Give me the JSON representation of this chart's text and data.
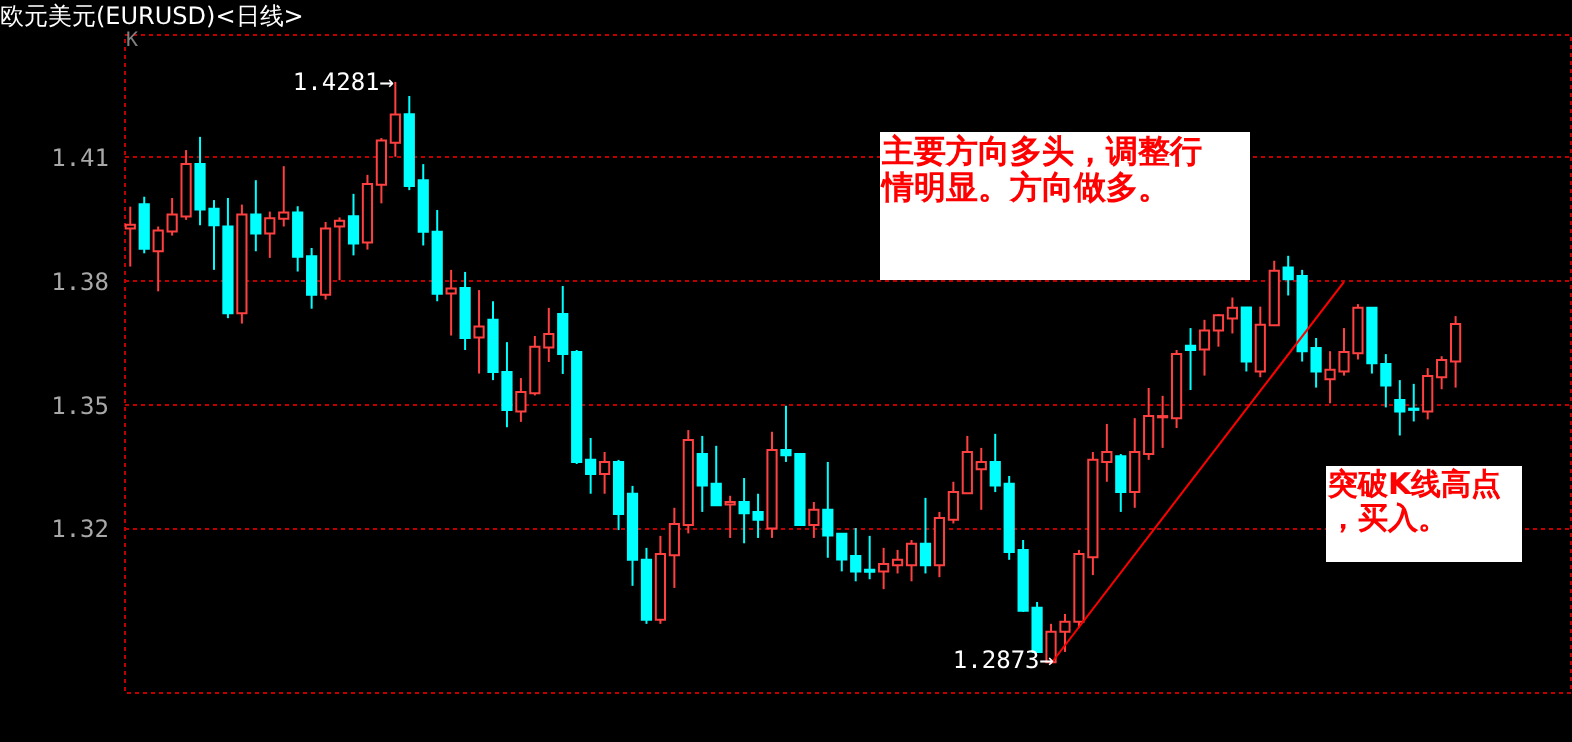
{
  "chart_data": {
    "type": "candlestick",
    "title": "欧元美元(EURUSD)<日线>",
    "categories": [
      null,
      null,
      null,
      null,
      null,
      null,
      null,
      null,
      null,
      null,
      null,
      null,
      null,
      null,
      null,
      null,
      null,
      null,
      null,
      null,
      null,
      null,
      null,
      null,
      null,
      null,
      null,
      null,
      null,
      null,
      null,
      null,
      null,
      null,
      null,
      null,
      null,
      null,
      null,
      null,
      null,
      null,
      null,
      null,
      null,
      null,
      null,
      null,
      null,
      null,
      null,
      null,
      null,
      null,
      null,
      null,
      null,
      null,
      null,
      null,
      null,
      null,
      null,
      null,
      null,
      null,
      null,
      null,
      null,
      null,
      null,
      null,
      null,
      null,
      null,
      null,
      null,
      null,
      null,
      null,
      null,
      null,
      null,
      null,
      null,
      null,
      null,
      null,
      null,
      null,
      null,
      null,
      null,
      null,
      null,
      null
    ],
    "ohlc": [
      [
        1.3926,
        1.3979,
        1.3834,
        1.3935
      ],
      [
        1.3985,
        1.4003,
        1.3866,
        1.3877
      ],
      [
        1.3871,
        1.3931,
        1.3774,
        1.3921
      ],
      [
        1.3919,
        1.4,
        1.3909,
        1.396
      ],
      [
        1.3955,
        1.4116,
        1.3947,
        1.4082
      ],
      [
        1.4082,
        1.4148,
        1.3934,
        1.3972
      ],
      [
        1.3974,
        1.3995,
        1.3826,
        1.3934
      ],
      [
        1.3931,
        1.4,
        1.3709,
        1.3721
      ],
      [
        1.3721,
        1.3984,
        1.3696,
        1.396
      ],
      [
        1.396,
        1.4043,
        1.3871,
        1.3914
      ],
      [
        1.3914,
        1.3967,
        1.3855,
        1.3951
      ],
      [
        1.395,
        1.4077,
        1.3931,
        1.3965
      ],
      [
        1.3965,
        1.398,
        1.3822,
        1.3858
      ],
      [
        1.3859,
        1.3879,
        1.3732,
        1.3766
      ],
      [
        1.3766,
        1.3942,
        1.3754,
        1.3926
      ],
      [
        1.3931,
        1.3953,
        1.3801,
        1.3945
      ],
      [
        1.3956,
        1.401,
        1.3861,
        1.389
      ],
      [
        1.3892,
        1.4056,
        1.3875,
        1.4034
      ],
      [
        1.4032,
        1.4145,
        1.3987,
        1.4139
      ],
      [
        1.4134,
        1.4281,
        1.41,
        1.4202
      ],
      [
        1.4203,
        1.4247,
        1.4019,
        1.4029
      ],
      [
        1.4043,
        1.4082,
        1.3885,
        1.3918
      ],
      [
        1.3918,
        1.3971,
        1.375,
        1.3768
      ],
      [
        1.3769,
        1.3826,
        1.3667,
        1.3781
      ],
      [
        1.3782,
        1.3821,
        1.3632,
        1.3661
      ],
      [
        1.3662,
        1.3777,
        1.3575,
        1.3689
      ],
      [
        1.3705,
        1.375,
        1.3559,
        1.3579
      ],
      [
        1.3579,
        1.3651,
        1.3445,
        1.3487
      ],
      [
        1.3483,
        1.3564,
        1.3458,
        1.353
      ],
      [
        1.3527,
        1.3666,
        1.3522,
        1.364
      ],
      [
        1.3638,
        1.3734,
        1.3603,
        1.3671
      ],
      [
        1.3719,
        1.3787,
        1.3574,
        1.3622
      ],
      [
        1.3627,
        1.3632,
        1.3356,
        1.3361
      ],
      [
        1.3366,
        1.3419,
        1.3284,
        1.3332
      ],
      [
        1.3332,
        1.3385,
        1.3284,
        1.3361
      ],
      [
        1.3361,
        1.3366,
        1.3196,
        1.3235
      ],
      [
        1.3284,
        1.3303,
        1.3061,
        1.3124
      ],
      [
        1.3124,
        1.3153,
        1.2969,
        1.2979
      ],
      [
        1.2979,
        1.3182,
        1.2969,
        1.3138
      ],
      [
        1.3135,
        1.325,
        1.3056,
        1.3211
      ],
      [
        1.3208,
        1.3438,
        1.3188,
        1.3414
      ],
      [
        1.338,
        1.3424,
        1.324,
        1.3304
      ],
      [
        1.3308,
        1.34,
        1.3256,
        1.3256
      ],
      [
        1.3258,
        1.3279,
        1.3177,
        1.3264
      ],
      [
        1.3264,
        1.3322,
        1.3164,
        1.3237
      ],
      [
        1.324,
        1.3284,
        1.3177,
        1.3221
      ],
      [
        1.32,
        1.3434,
        1.3177,
        1.339
      ],
      [
        1.339,
        1.3497,
        1.3361,
        1.3377
      ],
      [
        1.338,
        1.338,
        1.3208,
        1.3208
      ],
      [
        1.3208,
        1.3264,
        1.3177,
        1.3245
      ],
      [
        1.3245,
        1.3361,
        1.3129,
        1.3183
      ],
      [
        1.3187,
        1.3187,
        1.3096,
        1.3125
      ],
      [
        1.3133,
        1.3201,
        1.3072,
        1.3096
      ],
      [
        1.31,
        1.3182,
        1.3077,
        1.3095
      ],
      [
        1.3096,
        1.3153,
        1.3053,
        1.3114
      ],
      [
        1.3111,
        1.3148,
        1.3091,
        1.3124
      ],
      [
        1.3111,
        1.3172,
        1.3072,
        1.3163
      ],
      [
        1.3163,
        1.3274,
        1.3091,
        1.3111
      ],
      [
        1.3111,
        1.324,
        1.3082,
        1.3225
      ],
      [
        1.3221,
        1.3313,
        1.3212,
        1.3288
      ],
      [
        1.3285,
        1.3424,
        1.3285,
        1.3385
      ],
      [
        1.3343,
        1.3395,
        1.3245,
        1.3361
      ],
      [
        1.3361,
        1.3429,
        1.3288,
        1.3304
      ],
      [
        1.3308,
        1.3327,
        1.3124,
        1.3143
      ],
      [
        1.3148,
        1.3172,
        1.2998,
        1.3001
      ],
      [
        1.3008,
        1.3022,
        1.2901,
        1.2901
      ],
      [
        1.2876,
        1.2969,
        1.2873,
        1.295
      ],
      [
        1.295,
        1.2993,
        1.2901,
        1.2974
      ],
      [
        1.2974,
        1.3148,
        1.2959,
        1.3138
      ],
      [
        1.313,
        1.3385,
        1.3087,
        1.3366
      ],
      [
        1.3361,
        1.3453,
        1.3313,
        1.3385
      ],
      [
        1.3375,
        1.338,
        1.324,
        1.3288
      ],
      [
        1.3288,
        1.3467,
        1.325,
        1.3385
      ],
      [
        1.338,
        1.354,
        1.3366,
        1.3472
      ],
      [
        1.3469,
        1.3521,
        1.3395,
        1.3472
      ],
      [
        1.3467,
        1.3632,
        1.3443,
        1.3622
      ],
      [
        1.3642,
        1.3685,
        1.3535,
        1.3632
      ],
      [
        1.3633,
        1.3705,
        1.357,
        1.3679
      ],
      [
        1.3679,
        1.3719,
        1.364,
        1.3716
      ],
      [
        1.3708,
        1.3759,
        1.3672,
        1.3734
      ],
      [
        1.3735,
        1.3735,
        1.358,
        1.3604
      ],
      [
        1.358,
        1.3737,
        1.3566,
        1.3693
      ],
      [
        1.3692,
        1.3848,
        1.3692,
        1.3824
      ],
      [
        1.3832,
        1.386,
        1.3764,
        1.3803
      ],
      [
        1.3811,
        1.3826,
        1.3604,
        1.3629
      ],
      [
        1.3637,
        1.3661,
        1.3541,
        1.358
      ],
      [
        1.3561,
        1.3629,
        1.3503,
        1.3584
      ],
      [
        1.358,
        1.3685,
        1.357,
        1.3627
      ],
      [
        1.3624,
        1.3743,
        1.3609,
        1.3734
      ],
      [
        1.3734,
        1.3734,
        1.3575,
        1.36
      ],
      [
        1.3598,
        1.3622,
        1.3493,
        1.3546
      ],
      [
        1.3511,
        1.3559,
        1.3425,
        1.3483
      ],
      [
        1.349,
        1.355,
        1.3459,
        1.3487
      ],
      [
        1.3483,
        1.3588,
        1.3464,
        1.3569
      ],
      [
        1.3566,
        1.3617,
        1.3537,
        1.3608
      ],
      [
        1.3604,
        1.3714,
        1.3541,
        1.3695
      ]
    ],
    "colors": [
      "#ff4040",
      "#00ffff",
      "#ff4040",
      "#ff4040",
      "#ff4040",
      "#00ffff",
      "#00ffff",
      "#00ffff",
      "#ff4040",
      "#00ffff",
      "#ff4040",
      "#ff4040",
      "#00ffff",
      "#00ffff",
      "#ff4040",
      "#ff4040",
      "#00ffff",
      "#ff4040",
      "#ff4040",
      "#ff4040",
      "#00ffff",
      "#00ffff",
      "#00ffff",
      "#ff4040",
      "#00ffff",
      "#ff4040",
      "#00ffff",
      "#00ffff",
      "#ff4040",
      "#ff4040",
      "#ff4040",
      "#00ffff",
      "#00ffff",
      "#00ffff",
      "#ff4040",
      "#00ffff",
      "#00ffff",
      "#00ffff",
      "#ff4040",
      "#ff4040",
      "#ff4040",
      "#00ffff",
      "#00ffff",
      "#ff4040",
      "#00ffff",
      "#00ffff",
      "#ff4040",
      "#00ffff",
      "#00ffff",
      "#ff4040",
      "#00ffff",
      "#00ffff",
      "#00ffff",
      "#00ffff",
      "#ff4040",
      "#ff4040",
      "#ff4040",
      "#00ffff",
      "#ff4040",
      "#ff4040",
      "#ff4040",
      "#ff4040",
      "#00ffff",
      "#00ffff",
      "#00ffff",
      "#00ffff",
      "#ff4040",
      "#ff4040",
      "#ff4040",
      "#ff4040",
      "#ff4040",
      "#00ffff",
      "#ff4040",
      "#ff4040",
      "#ff4040",
      "#ff4040",
      "#00ffff",
      "#ff4040",
      "#ff4040",
      "#ff4040",
      "#00ffff",
      "#ff4040",
      "#ff4040",
      "#00ffff",
      "#00ffff",
      "#00ffff",
      "#ff4040",
      "#ff4040",
      "#ff4040",
      "#00ffff",
      "#00ffff",
      "#00ffff",
      "#00ffff",
      "#ff4040",
      "#ff4040",
      "#ff4040"
    ],
    "ylim": [
      1.2804,
      1.4397
    ],
    "yticks": [
      1.32,
      1.35,
      1.38,
      1.41
    ],
    "grid": "y",
    "series": [
      {
        "type": "line",
        "color": "#ff0000",
        "values": [
          null,
          null,
          null,
          null,
          null,
          null,
          null,
          null,
          null,
          null,
          null,
          null,
          null,
          null,
          null,
          null,
          null,
          null,
          null,
          null,
          null,
          null,
          null,
          null,
          null,
          null,
          null,
          null,
          null,
          null,
          null,
          null,
          null,
          null,
          null,
          null,
          null,
          null,
          null,
          null,
          null,
          null,
          null,
          null,
          null,
          null,
          null,
          null,
          null,
          null,
          null,
          null,
          null,
          null,
          null,
          null,
          null,
          null,
          null,
          null,
          null,
          null,
          null,
          null,
          null,
          null,
          1.2873,
          null,
          null,
          null,
          null,
          null,
          null,
          null,
          null,
          null,
          null,
          null,
          null,
          null,
          null,
          null,
          null,
          null,
          null,
          null,
          null,
          1.3797,
          null,
          null,
          null,
          null,
          null,
          null,
          null,
          null
        ]
      }
    ],
    "annotations": [
      "K",
      "1.4281→",
      "1.2873→",
      "主要方向多头，调整行情明显。方向做多。",
      "突破K线高点，买入。"
    ]
  }
}
